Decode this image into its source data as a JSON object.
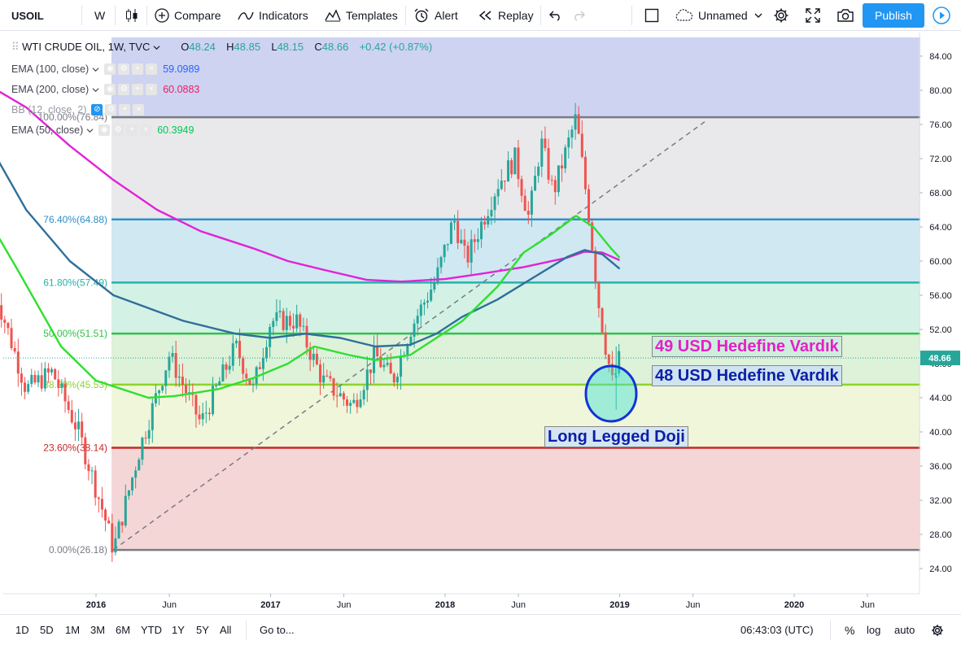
{
  "toolbar": {
    "symbol": "USOIL",
    "interval": "W",
    "compare": "Compare",
    "indicators": "Indicators",
    "templates": "Templates",
    "alert": "Alert",
    "replay": "Replay",
    "layout_name": "Unnamed",
    "publish": "Publish"
  },
  "legend": {
    "title": "WTI CRUDE OIL, 1W, TVC",
    "o_label": "O",
    "o": "48.24",
    "h_label": "H",
    "h": "48.85",
    "l_label": "L",
    "l": "48.15",
    "c_label": "C",
    "c": "48.66",
    "change": "+0.42 (+0.87%)"
  },
  "indicators": [
    {
      "label": "EMA (100, close)",
      "value": "59.0989",
      "color": "#2962ff"
    },
    {
      "label": "EMA (200, close)",
      "value": "60.0883",
      "color": "#e91e63"
    },
    {
      "label": "BB (12, close, 2)",
      "value": "",
      "color": "#888888"
    },
    {
      "label": "EMA (50, close)",
      "value": "60.3949",
      "color": "#00c853"
    }
  ],
  "bottom": {
    "ranges": [
      "1D",
      "5D",
      "1M",
      "3M",
      "6M",
      "YTD",
      "1Y",
      "5Y",
      "All"
    ],
    "goto": "Go to...",
    "time": "06:43:03 (UTC)",
    "pct": "%",
    "log": "log",
    "auto": "auto"
  },
  "annotations": {
    "a49": "49 USD Hedefine Vardık",
    "a48": "48 USD Hedefine Vardık",
    "doji": "Long Legged Doji"
  },
  "colors": {
    "up": "#26a69a",
    "down": "#ef5350",
    "ema50": "#2ee02e",
    "ema100": "#2f6f9a",
    "ema200": "#e024d6",
    "accent": "#2196f3"
  },
  "chart_data": {
    "type": "candlestick",
    "title": "WTI CRUDE OIL, 1W, TVC",
    "y_ticks": [
      24,
      28,
      32,
      36,
      40,
      44,
      48,
      52,
      56,
      60,
      64,
      68,
      72,
      76,
      80,
      84
    ],
    "x_ticks": [
      "2016",
      "Jun",
      "2017",
      "Jun",
      "2018",
      "Jun",
      "2019",
      "Jun",
      "2020",
      "Jun"
    ],
    "ylim": [
      22.5,
      86
    ],
    "last_price": "48.66",
    "fib_levels": [
      {
        "label": "100.00%(76.84)",
        "value": 76.84,
        "color": "#787b86"
      },
      {
        "label": "76.40%(64.88)",
        "value": 64.88,
        "color": "#2f8fc9"
      },
      {
        "label": "61.80%(57.49)",
        "value": 57.49,
        "color": "#26b3a8"
      },
      {
        "label": "50.00%(51.51)",
        "value": 51.51,
        "color": "#2ec24a"
      },
      {
        "label": "38.20%(45.53)",
        "value": 45.53,
        "color": "#8bd42a"
      },
      {
        "label": "23.60%(38.14)",
        "value": 38.14,
        "color": "#c62828"
      },
      {
        "label": "0.00%(26.18)",
        "value": 26.18,
        "color": "#787b86"
      }
    ],
    "price_path": [
      [
        2015.4,
        58.0
      ],
      [
        2015.6,
        45.0
      ],
      [
        2015.75,
        47.0
      ],
      [
        2015.9,
        40.0
      ],
      [
        2016.05,
        30.0
      ],
      [
        2016.1,
        26.2
      ],
      [
        2016.25,
        38.0
      ],
      [
        2016.42,
        49.0
      ],
      [
        2016.6,
        41.0
      ],
      [
        2016.8,
        50.0
      ],
      [
        2016.9,
        45.0
      ],
      [
        2017.0,
        53.0
      ],
      [
        2017.15,
        53.0
      ],
      [
        2017.3,
        46.0
      ],
      [
        2017.47,
        43.0
      ],
      [
        2017.6,
        49.0
      ],
      [
        2017.7,
        46.0
      ],
      [
        2017.8,
        52.0
      ],
      [
        2017.95,
        58.0
      ],
      [
        2018.05,
        65.0
      ],
      [
        2018.12,
        60.0
      ],
      [
        2018.3,
        69.0
      ],
      [
        2018.4,
        72.0
      ],
      [
        2018.48,
        65.0
      ],
      [
        2018.55,
        74.0
      ],
      [
        2018.62,
        68.0
      ],
      [
        2018.75,
        76.8
      ],
      [
        2018.82,
        66.0
      ],
      [
        2018.88,
        55.0
      ],
      [
        2018.92,
        50.0
      ],
      [
        2018.96,
        45.5
      ],
      [
        2019.0,
        48.7
      ]
    ],
    "ema50": [
      [
        2015.35,
        66.0
      ],
      [
        2015.55,
        59.0
      ],
      [
        2015.8,
        50.0
      ],
      [
        2016.0,
        46.0
      ],
      [
        2016.15,
        45.0
      ],
      [
        2016.3,
        44.0
      ],
      [
        2016.45,
        44.2
      ],
      [
        2016.7,
        45.0
      ],
      [
        2016.9,
        46.3
      ],
      [
        2017.1,
        48.0
      ],
      [
        2017.25,
        50.0
      ],
      [
        2017.45,
        49.0
      ],
      [
        2017.6,
        48.4
      ],
      [
        2017.8,
        49.0
      ],
      [
        2017.95,
        51.0
      ],
      [
        2018.1,
        53.0
      ],
      [
        2018.3,
        57.0
      ],
      [
        2018.45,
        61.0
      ],
      [
        2018.6,
        63.0
      ],
      [
        2018.75,
        65.3
      ],
      [
        2018.85,
        64.0
      ],
      [
        2018.95,
        61.5
      ],
      [
        2019.0,
        60.4
      ]
    ],
    "ema100": [
      [
        2015.35,
        75.0
      ],
      [
        2015.6,
        66.0
      ],
      [
        2015.85,
        60.0
      ],
      [
        2016.1,
        56.0
      ],
      [
        2016.3,
        54.5
      ],
      [
        2016.5,
        53.0
      ],
      [
        2016.8,
        51.5
      ],
      [
        2017.0,
        51.0
      ],
      [
        2017.2,
        51.5
      ],
      [
        2017.4,
        51.0
      ],
      [
        2017.6,
        50.0
      ],
      [
        2017.8,
        50.2
      ],
      [
        2017.95,
        51.5
      ],
      [
        2018.1,
        53.5
      ],
      [
        2018.3,
        55.5
      ],
      [
        2018.5,
        58.0
      ],
      [
        2018.7,
        60.5
      ],
      [
        2018.8,
        61.3
      ],
      [
        2018.9,
        60.8
      ],
      [
        2019.0,
        59.1
      ]
    ],
    "ema200": [
      [
        2015.35,
        81.0
      ],
      [
        2015.6,
        78.0
      ],
      [
        2015.85,
        73.5
      ],
      [
        2016.1,
        69.5
      ],
      [
        2016.35,
        66.0
      ],
      [
        2016.6,
        63.5
      ],
      [
        2016.9,
        61.5
      ],
      [
        2017.1,
        60.0
      ],
      [
        2017.3,
        59.0
      ],
      [
        2017.55,
        57.8
      ],
      [
        2017.75,
        57.6
      ],
      [
        2018.0,
        57.9
      ],
      [
        2018.2,
        58.5
      ],
      [
        2018.45,
        59.3
      ],
      [
        2018.7,
        60.4
      ],
      [
        2018.8,
        61.1
      ],
      [
        2018.9,
        61.0
      ],
      [
        2019.0,
        60.1
      ]
    ],
    "trendline": [
      [
        2016.1,
        26.2
      ],
      [
        2019.5,
        76.5
      ]
    ]
  }
}
